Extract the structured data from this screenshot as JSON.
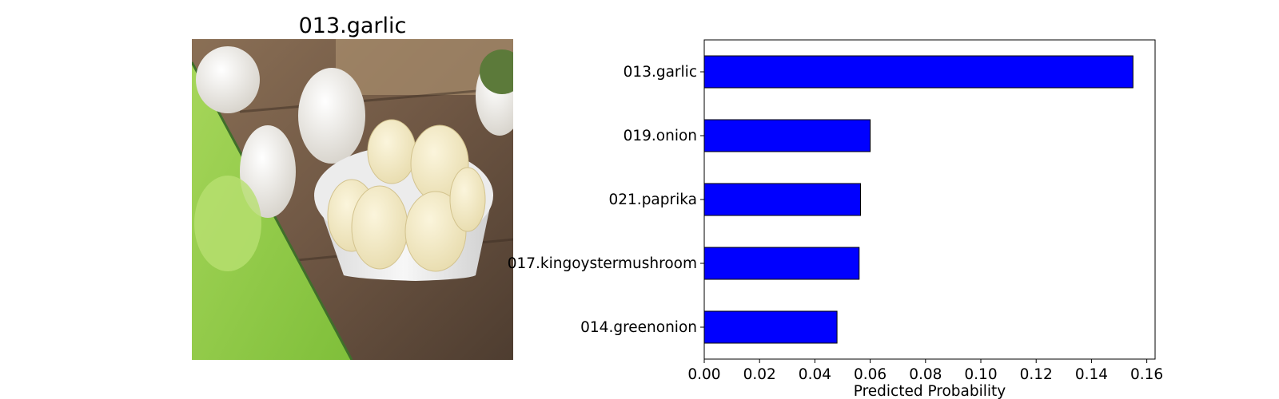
{
  "image_panel": {
    "title": "013.garlic",
    "picture": "garlic-photo"
  },
  "colors": {
    "bar_fill": "#0000ff",
    "bar_edge": "#000000",
    "axes": "#000000",
    "background": "#ffffff"
  },
  "chart_data": {
    "type": "bar",
    "orientation": "horizontal",
    "categories": [
      "013.garlic",
      "019.onion",
      "021.paprika",
      "017.kingoystermushroom",
      "014.greenonion"
    ],
    "values": [
      0.155,
      0.06,
      0.0565,
      0.056,
      0.048
    ],
    "xlabel": "Predicted Probability",
    "ylabel": "",
    "title": "",
    "xlim": [
      0,
      0.163
    ],
    "xticks": [
      0.0,
      0.02,
      0.04,
      0.06,
      0.08,
      0.1,
      0.12,
      0.14,
      0.16
    ],
    "xtick_labels": [
      "0.00",
      "0.02",
      "0.04",
      "0.06",
      "0.08",
      "0.10",
      "0.12",
      "0.14",
      "0.16"
    ],
    "grid": false,
    "legend": "none"
  }
}
